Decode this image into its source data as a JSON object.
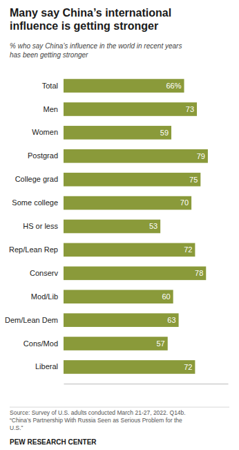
{
  "chart_data": {
    "type": "bar",
    "orientation": "horizontal",
    "title": "Many say China’s international\ninfluence is getting stronger",
    "subtitle": "% who say China’s influence in the world in recent years\nhas been getting stronger",
    "categories": [
      "Total",
      "Men",
      "Women",
      "Postgrad",
      "College grad",
      "Some college",
      "HS or less",
      "Rep/Lean Rep",
      "Conserv",
      "Mod/Lib",
      "Dem/Lean Dem",
      "Cons/Mod",
      "Liberal"
    ],
    "values": [
      66,
      73,
      59,
      79,
      75,
      70,
      53,
      72,
      78,
      60,
      63,
      57,
      72
    ],
    "value_labels": [
      "66%",
      "73",
      "59",
      "79",
      "75",
      "70",
      "53",
      "72",
      "78",
      "60",
      "63",
      "57",
      "72"
    ],
    "data_labels": true,
    "color": "#8a9a3a",
    "xlim": [
      0,
      90
    ],
    "tick_labels": false,
    "grid": false,
    "source": "Source: Survey of U.S. adults conducted March 21-27, 2022. Q14b.\n“China’s Partnership With Russia Seen as Serious Problem for the\nU.S.”",
    "footer": "PEW RESEARCH CENTER"
  }
}
